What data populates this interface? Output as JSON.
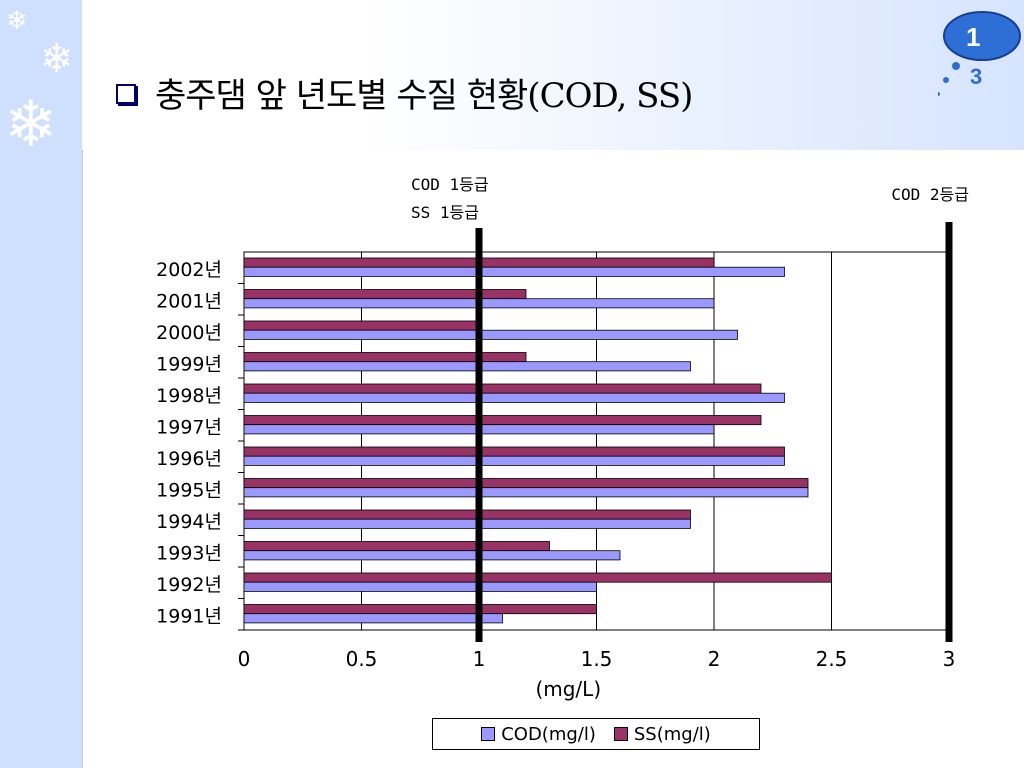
{
  "slide": {
    "title": "충주댐 앞 년도별 수질 현황(COD, SS)",
    "page_number_top": "1",
    "page_number_bottom": "3"
  },
  "colors": {
    "cod": "#9999ff",
    "ss": "#993366",
    "ref_line": "#000000",
    "sidebar": "#cfe0ff"
  },
  "icons": {
    "bullet": "checkbox-bullet-icon",
    "snowflake": "snowflake-icon",
    "badge": "cloud-badge-icon"
  },
  "chart_data": {
    "type": "bar",
    "orientation": "horizontal",
    "categories": [
      "2002년",
      "2001년",
      "2000년",
      "1999년",
      "1998년",
      "1997년",
      "1996년",
      "1995년",
      "1994년",
      "1993년",
      "1992년",
      "1991년"
    ],
    "series": [
      {
        "name": "SS(mg/l)",
        "values": [
          2.0,
          1.2,
          1.0,
          1.2,
          2.2,
          2.2,
          2.3,
          2.4,
          1.9,
          1.3,
          2.5,
          1.5
        ]
      },
      {
        "name": "COD(mg/l)",
        "values": [
          2.3,
          2.0,
          2.1,
          1.9,
          2.3,
          2.0,
          2.3,
          2.4,
          1.9,
          1.6,
          1.5,
          1.1
        ]
      }
    ],
    "xlabel": "(mg/L)",
    "xlim": [
      0,
      3
    ],
    "xticks": [
      "0",
      "0.5",
      "1",
      "1.5",
      "2",
      "2.5",
      "3"
    ],
    "grid": true,
    "legend_position": "bottom",
    "reference_lines": [
      {
        "value": 1,
        "labels": [
          "COD  1등급",
          "SS  1등급"
        ]
      },
      {
        "value": 3,
        "labels": [
          "COD  2등급"
        ]
      }
    ]
  }
}
